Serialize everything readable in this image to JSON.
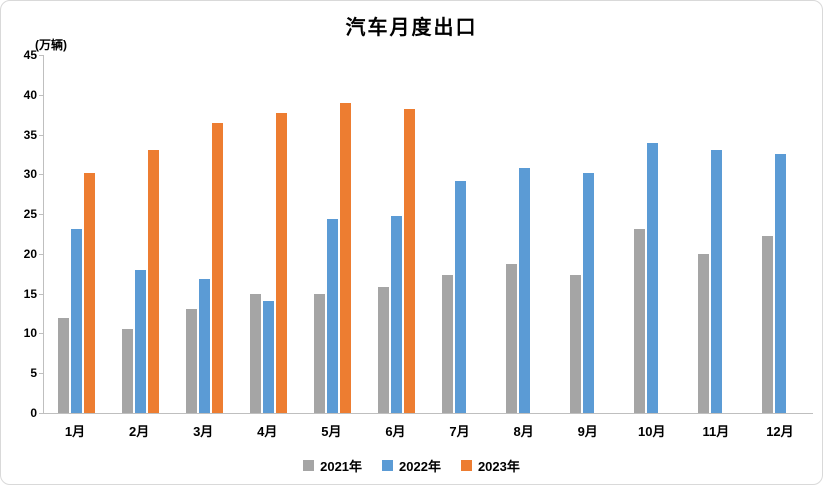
{
  "chart_data": {
    "type": "bar",
    "title": "汽车月度出口",
    "ylabel": "(万辆)",
    "xlabel": "",
    "categories": [
      "1月",
      "2月",
      "3月",
      "4月",
      "5月",
      "6月",
      "7月",
      "8月",
      "9月",
      "10月",
      "11月",
      "12月"
    ],
    "series": [
      {
        "name": "2021年",
        "color": "#a5a5a5",
        "values": [
          12.0,
          10.5,
          13.1,
          15.0,
          15.0,
          15.8,
          17.4,
          18.7,
          17.3,
          23.1,
          20.0,
          22.3
        ]
      },
      {
        "name": "2022年",
        "color": "#5b9bd5",
        "values": [
          23.1,
          18.0,
          16.9,
          14.1,
          24.4,
          24.8,
          29.1,
          30.8,
          30.2,
          33.9,
          33.0,
          32.5
        ]
      },
      {
        "name": "2023年",
        "color": "#ed7d31",
        "values": [
          30.2,
          33.0,
          36.4,
          37.7,
          39.0,
          38.2,
          null,
          null,
          null,
          null,
          null,
          null
        ]
      }
    ],
    "ylim": [
      0,
      45
    ],
    "ytick_step": 5,
    "grid": false,
    "legend_position": "bottom",
    "axis_color": "#bfbfbf"
  }
}
